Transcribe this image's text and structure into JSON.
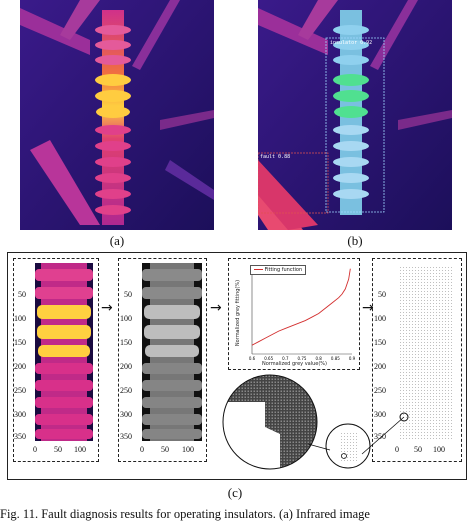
{
  "panels": {
    "a_label": "(a)",
    "b_label": "(b)",
    "c_label": "(c)"
  },
  "detections": {
    "top_label": "insulator 0.92",
    "side_label": "fault 0.88"
  },
  "c_panel": {
    "c1_yticks": [
      "50",
      "100",
      "150",
      "200",
      "250",
      "300",
      "350"
    ],
    "c1_xticks": [
      "0",
      "50",
      "100"
    ],
    "c2_yticks": [
      "50",
      "100",
      "150",
      "200",
      "250",
      "300",
      "350"
    ],
    "c2_xticks": [
      "0",
      "50",
      "100"
    ],
    "c4_yticks": [
      "50",
      "100",
      "150",
      "200",
      "250",
      "300",
      "350"
    ],
    "c4_xticks": [
      "0",
      "50",
      "100"
    ],
    "arrow": "→"
  },
  "chart_data": {
    "type": "line",
    "title": "",
    "legend": [
      "Fitting function"
    ],
    "xlabel": "Normalized grey value(%)",
    "ylabel": "Normalized grey fitting(%)",
    "x_ticks": [
      "0.6",
      "0.65",
      "0.7",
      "0.75",
      "0.8",
      "0.85",
      "0.9"
    ],
    "series": [
      {
        "name": "Fitting function",
        "x": [
          0.6,
          0.62,
          0.64,
          0.66,
          0.68,
          0.7,
          0.72,
          0.74,
          0.76,
          0.78,
          0.8,
          0.82,
          0.84,
          0.86,
          0.87,
          0.88,
          0.89,
          0.895
        ],
        "y": [
          0.1,
          0.14,
          0.18,
          0.22,
          0.26,
          0.29,
          0.32,
          0.35,
          0.38,
          0.42,
          0.46,
          0.52,
          0.58,
          0.64,
          0.68,
          0.74,
          0.85,
          0.97
        ]
      }
    ],
    "xlim": [
      0.6,
      0.9
    ],
    "ylim": [
      0,
      1
    ]
  },
  "caption": "Fig. 11.   Fault diagnosis results for operating insulators. (a) Infrared image"
}
